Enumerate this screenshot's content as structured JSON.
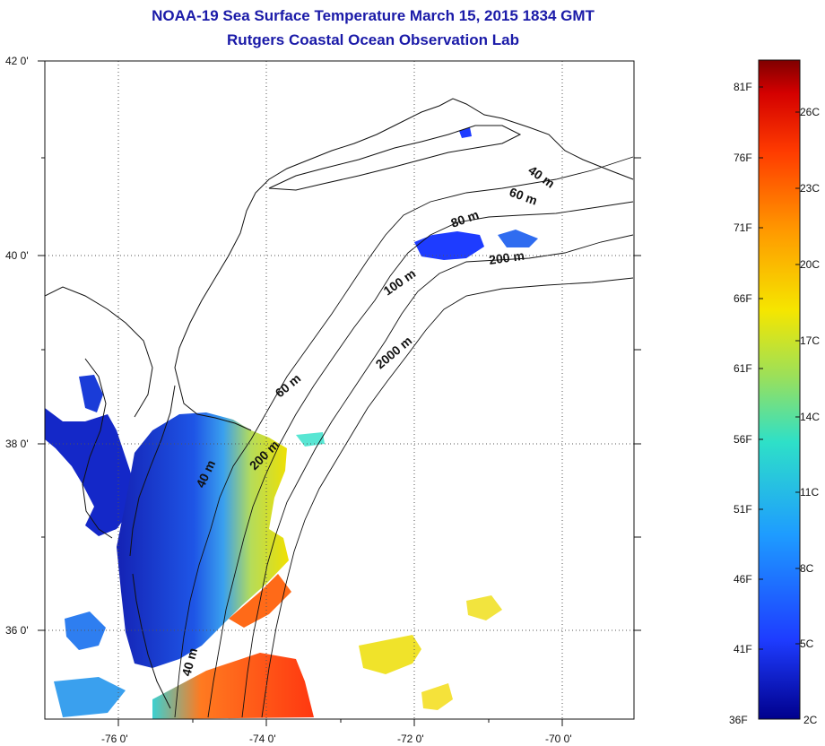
{
  "title_line1": "NOAA-19 Sea Surface Temperature March 15, 2015 1834 GMT",
  "title_line2": "Rutgers Coastal Ocean Observation Lab",
  "lon_labels": [
    "-76 0'",
    "-74 0'",
    "-72 0'",
    "-70 0'"
  ],
  "lat_labels": [
    "42 0'",
    "40 0'",
    "38 0'",
    "36 0'"
  ],
  "isobaths": [
    "40 m",
    "60 m",
    "80 m",
    "200 m",
    "100 m",
    "2000 m",
    "60 m",
    "200 m",
    "40 m",
    "40 m"
  ],
  "colorbar": {
    "f_labels": [
      "81F",
      "76F",
      "71F",
      "66F",
      "61F",
      "56F",
      "51F",
      "46F",
      "41F",
      "36F"
    ],
    "c_labels": [
      "26C",
      "23C",
      "20C",
      "17C",
      "14C",
      "11C",
      "8C",
      "5C",
      "2C"
    ],
    "colors": [
      "#7f0000",
      "#d40000",
      "#ff3c00",
      "#ff9a00",
      "#f5e600",
      "#9be05a",
      "#2ee0c8",
      "#1e9cff",
      "#1e3cff",
      "#00008c"
    ]
  }
}
